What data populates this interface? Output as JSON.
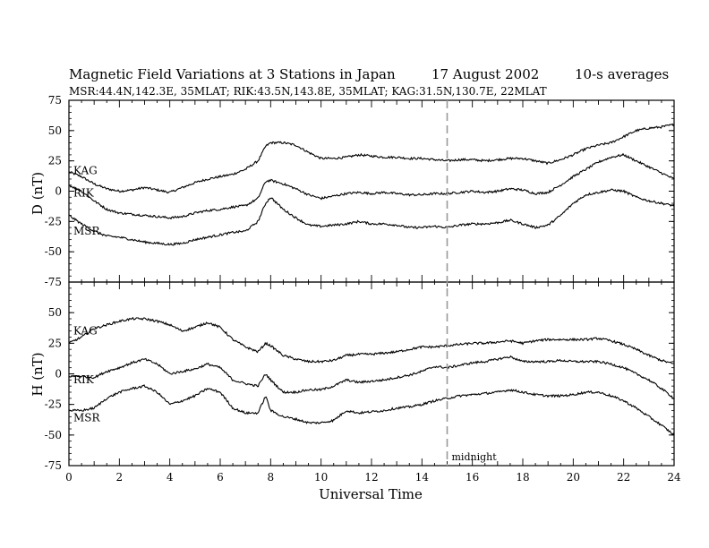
{
  "title": {
    "main": "Magnetic Field Variations at 3 Stations in Japan",
    "date": "17  August  2002",
    "averaging": "10-s averages",
    "subtitle": "MSR:44.4N,142.3E, 35MLAT;  RIK:43.5N,143.8E, 35MLAT;  KAG:31.5N,130.7E, 22MLAT"
  },
  "chart_data": [
    {
      "type": "line",
      "panel": "D",
      "ylabel": "D (nT)",
      "xlim": [
        0,
        24
      ],
      "ylim": [
        -75,
        75
      ],
      "yticks": [
        "75",
        "50",
        "25",
        "0",
        "-25",
        "-50",
        "-75"
      ],
      "yticks_values": [
        75,
        50,
        25,
        0,
        -25,
        -50,
        -75
      ],
      "series": [
        {
          "name": "KAG",
          "x": [
            0,
            0.5,
            1,
            1.5,
            2,
            2.5,
            3,
            3.5,
            4,
            4.5,
            5,
            5.5,
            6,
            6.5,
            7,
            7.5,
            7.8,
            8,
            8.5,
            9,
            9.5,
            10,
            10.5,
            11,
            11.5,
            12,
            12.5,
            13,
            13.5,
            14,
            14.5,
            15,
            15.5,
            16,
            16.5,
            17,
            17.5,
            18,
            18.5,
            19,
            19.5,
            20,
            20.5,
            21,
            21.5,
            22,
            22.5,
            23,
            23.5,
            24
          ],
          "y": [
            16,
            12,
            6,
            2,
            0,
            1,
            3,
            1,
            -1,
            3,
            7,
            10,
            12,
            14,
            18,
            25,
            37,
            40,
            40,
            38,
            32,
            27,
            27,
            28,
            30,
            29,
            28,
            28,
            27,
            27,
            26,
            25,
            26,
            26,
            25,
            26,
            27,
            27,
            25,
            23,
            26,
            30,
            35,
            38,
            40,
            45,
            50,
            52,
            53,
            55
          ]
        },
        {
          "name": "RIK",
          "x": [
            0,
            0.5,
            1,
            1.5,
            2,
            2.5,
            3,
            3.5,
            4,
            4.5,
            5,
            5.5,
            6,
            6.5,
            7,
            7.5,
            7.8,
            8,
            8.5,
            9,
            9.5,
            10,
            10.5,
            11,
            11.5,
            12,
            12.5,
            13,
            13.5,
            14,
            14.5,
            15,
            15.5,
            16,
            16.5,
            17,
            17.5,
            18,
            18.5,
            19,
            19.5,
            20,
            20.5,
            21,
            21.5,
            22,
            22.5,
            23,
            23.5,
            24
          ],
          "y": [
            5,
            0,
            -8,
            -15,
            -18,
            -19,
            -20,
            -21,
            -22,
            -21,
            -18,
            -16,
            -15,
            -13,
            -12,
            -6,
            8,
            9,
            6,
            2,
            -3,
            -6,
            -4,
            -2,
            -1,
            -2,
            -1,
            -2,
            -3,
            -3,
            -2,
            -2,
            -1,
            0,
            -1,
            0,
            2,
            1,
            -2,
            -1,
            5,
            12,
            18,
            24,
            28,
            30,
            25,
            20,
            15,
            10
          ]
        },
        {
          "name": "MSR",
          "x": [
            0,
            0.5,
            1,
            1.5,
            2,
            2.5,
            3,
            3.5,
            4,
            4.5,
            5,
            5.5,
            6,
            6.5,
            7,
            7.5,
            7.8,
            8,
            8.5,
            9,
            9.5,
            10,
            10.5,
            11,
            11.5,
            12,
            12.5,
            13,
            13.5,
            14,
            14.5,
            15,
            15.5,
            16,
            16.5,
            17,
            17.5,
            18,
            18.5,
            19,
            19.5,
            20,
            20.5,
            21,
            21.5,
            22,
            22.5,
            23,
            23.5,
            24
          ],
          "y": [
            -20,
            -27,
            -33,
            -37,
            -38,
            -40,
            -42,
            -43,
            -44,
            -43,
            -40,
            -38,
            -36,
            -34,
            -33,
            -25,
            -10,
            -5,
            -15,
            -22,
            -28,
            -29,
            -28,
            -27,
            -25,
            -27,
            -27,
            -28,
            -30,
            -30,
            -29,
            -30,
            -28,
            -27,
            -27,
            -26,
            -24,
            -27,
            -30,
            -28,
            -20,
            -10,
            -3,
            -1,
            1,
            0,
            -5,
            -8,
            -10,
            -12
          ]
        }
      ]
    },
    {
      "type": "line",
      "panel": "H",
      "ylabel": "H (nT)",
      "xlabel": "Universal Time",
      "xlim": [
        0,
        24
      ],
      "ylim": [
        -75,
        75
      ],
      "xticks": [
        "0",
        "2",
        "4",
        "6",
        "8",
        "10",
        "12",
        "14",
        "16",
        "18",
        "20",
        "22",
        "24"
      ],
      "xticks_values": [
        0,
        2,
        4,
        6,
        8,
        10,
        12,
        14,
        16,
        18,
        20,
        22,
        24
      ],
      "yticks": [
        "50",
        "25",
        "0",
        "-25",
        "-50",
        "-75"
      ],
      "yticks_values": [
        50,
        25,
        0,
        -25,
        -50,
        -75
      ],
      "series": [
        {
          "name": "KAG",
          "x": [
            0,
            0.5,
            1,
            1.5,
            2,
            2.5,
            3,
            3.5,
            4,
            4.5,
            5,
            5.5,
            6,
            6.5,
            7,
            7.5,
            7.8,
            8,
            8.5,
            9,
            9.5,
            10,
            10.5,
            11,
            11.5,
            12,
            12.5,
            13,
            13.5,
            14,
            14.5,
            15,
            15.5,
            16,
            16.5,
            17,
            17.5,
            18,
            18.5,
            19,
            19.5,
            20,
            20.5,
            21,
            21.5,
            22,
            22.5,
            23,
            23.5,
            24
          ],
          "y": [
            25,
            30,
            37,
            40,
            43,
            45,
            45,
            43,
            40,
            35,
            38,
            42,
            38,
            28,
            22,
            18,
            25,
            23,
            15,
            12,
            10,
            10,
            11,
            15,
            16,
            16,
            17,
            18,
            20,
            22,
            22,
            23,
            24,
            25,
            25,
            26,
            27,
            25,
            27,
            28,
            28,
            28,
            28,
            29,
            27,
            24,
            20,
            15,
            11,
            8
          ]
        },
        {
          "name": "RIK",
          "x": [
            0,
            0.5,
            1,
            1.5,
            2,
            2.5,
            3,
            3.5,
            4,
            4.5,
            5,
            5.5,
            6,
            6.5,
            7,
            7.5,
            7.8,
            8,
            8.5,
            9,
            9.5,
            10,
            10.5,
            11,
            11.5,
            12,
            12.5,
            13,
            13.5,
            14,
            14.5,
            15,
            15.5,
            16,
            16.5,
            17,
            17.5,
            18,
            18.5,
            19,
            19.5,
            20,
            20.5,
            21,
            21.5,
            22,
            22.5,
            23,
            23.5,
            24
          ],
          "y": [
            -2,
            -2,
            -3,
            2,
            5,
            9,
            12,
            8,
            0,
            2,
            4,
            8,
            5,
            -5,
            -8,
            -10,
            0,
            -5,
            -15,
            -15,
            -13,
            -13,
            -10,
            -5,
            -7,
            -6,
            -5,
            -3,
            -1,
            2,
            6,
            5,
            7,
            9,
            10,
            12,
            14,
            10,
            10,
            10,
            11,
            10,
            10,
            10,
            8,
            5,
            0,
            -5,
            -12,
            -20
          ]
        },
        {
          "name": "MSR",
          "x": [
            0,
            0.5,
            1,
            1.5,
            2,
            2.5,
            3,
            3.5,
            4,
            4.5,
            5,
            5.5,
            6,
            6.5,
            7,
            7.5,
            7.8,
            8,
            8.5,
            9,
            9.5,
            10,
            10.5,
            11,
            11.5,
            12,
            12.5,
            13,
            13.5,
            14,
            14.5,
            15,
            15.5,
            16,
            16.5,
            17,
            17.5,
            18,
            18.5,
            19,
            19.5,
            20,
            20.5,
            21,
            21.5,
            22,
            22.5,
            23,
            23.5,
            24
          ],
          "y": [
            -30,
            -30,
            -28,
            -20,
            -15,
            -12,
            -10,
            -15,
            -25,
            -22,
            -18,
            -12,
            -15,
            -28,
            -32,
            -32,
            -18,
            -30,
            -35,
            -37,
            -40,
            -40,
            -38,
            -30,
            -32,
            -31,
            -30,
            -28,
            -27,
            -25,
            -22,
            -20,
            -18,
            -17,
            -16,
            -15,
            -13,
            -15,
            -17,
            -18,
            -18,
            -17,
            -15,
            -15,
            -18,
            -22,
            -28,
            -35,
            -42,
            -50
          ]
        }
      ]
    }
  ],
  "annotations": {
    "midnight_label": "midnight",
    "midnight_ut": 15
  }
}
